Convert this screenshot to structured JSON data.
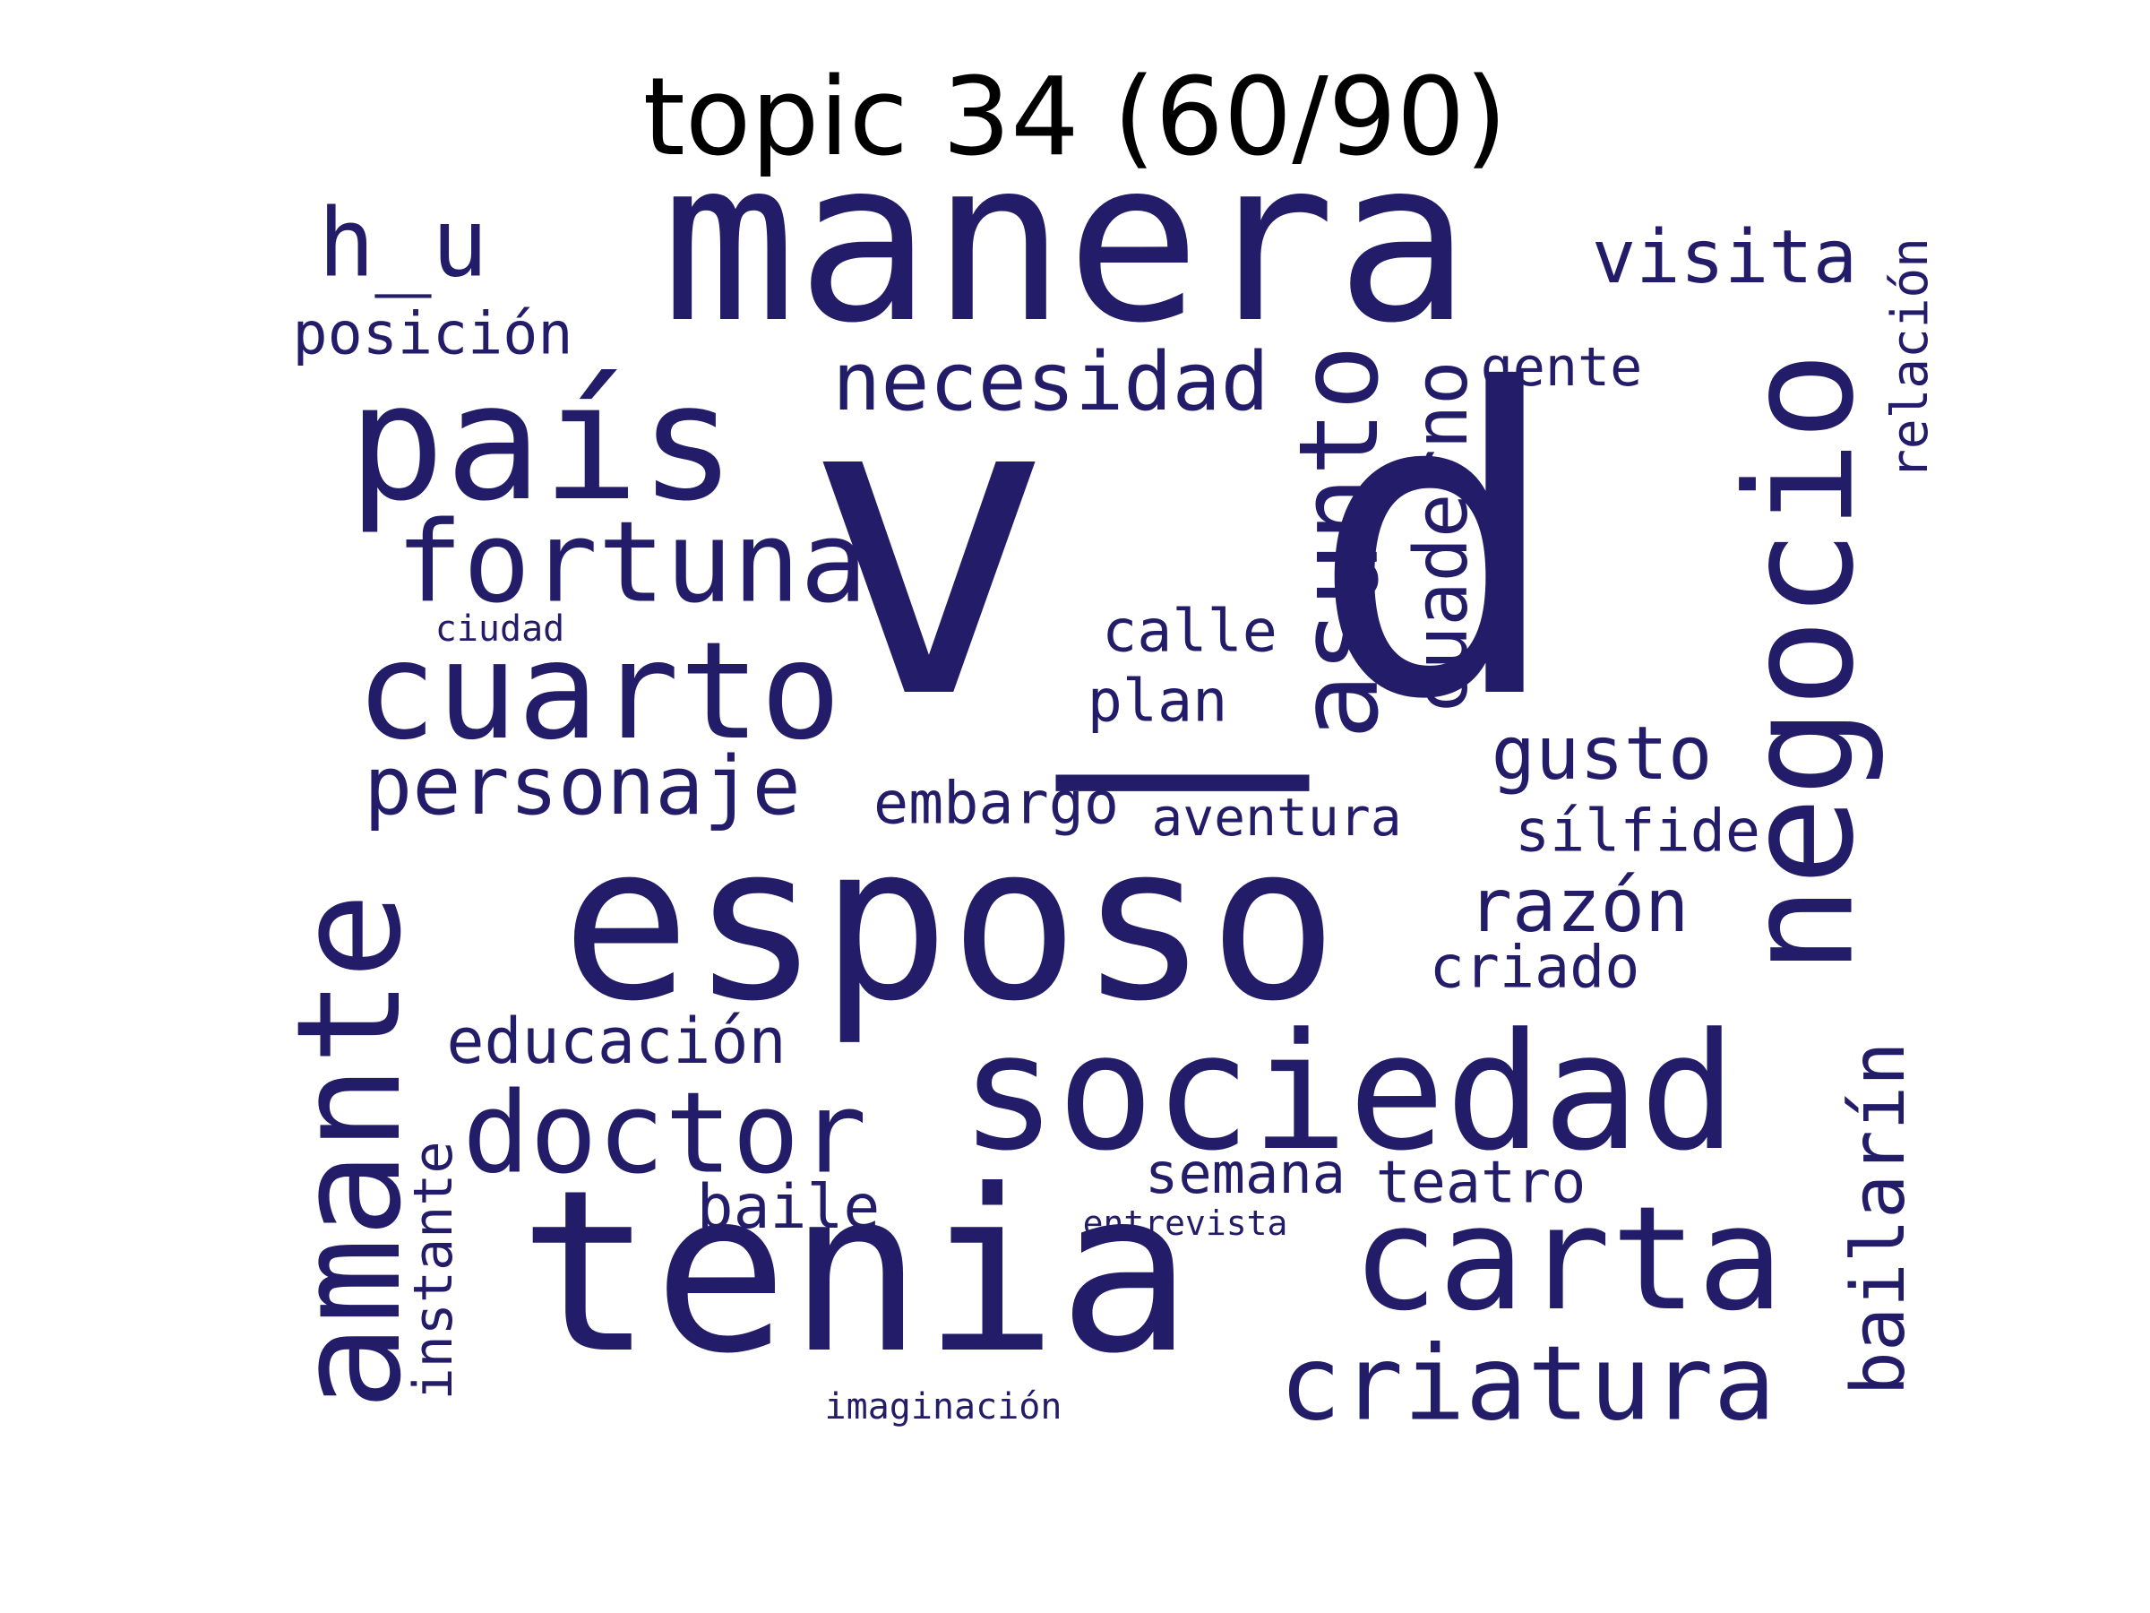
{
  "title": "topic 34 (60/90)",
  "word_color": "#231c69",
  "words": [
    {
      "text": "v_d",
      "weight": 1.0
    },
    {
      "text": "manera",
      "weight": 0.62
    },
    {
      "text": "esposo",
      "weight": 0.6
    },
    {
      "text": "tenia",
      "weight": 0.57
    },
    {
      "text": "país",
      "weight": 0.45
    },
    {
      "text": "sociedad",
      "weight": 0.45
    },
    {
      "text": "negocio",
      "weight": 0.43
    },
    {
      "text": "amante",
      "weight": 0.43
    },
    {
      "text": "carta",
      "weight": 0.42
    },
    {
      "text": "cuarto",
      "weight": 0.36
    },
    {
      "text": "doctor",
      "weight": 0.3
    },
    {
      "text": "fortuna",
      "weight": 0.3
    },
    {
      "text": "asunto",
      "weight": 0.3
    },
    {
      "text": "criatura",
      "weight": 0.29
    },
    {
      "text": "h_u",
      "weight": 0.25
    },
    {
      "text": "necesidad",
      "weight": 0.22
    },
    {
      "text": "personaje",
      "weight": 0.22
    },
    {
      "text": "cuaderno",
      "weight": 0.21
    },
    {
      "text": "gusto",
      "weight": 0.2
    },
    {
      "text": "razón",
      "weight": 0.2
    },
    {
      "text": "visita",
      "weight": 0.2
    },
    {
      "text": "bailarín",
      "weight": 0.2
    },
    {
      "text": "educación",
      "weight": 0.17
    },
    {
      "text": "embargo",
      "weight": 0.16
    },
    {
      "text": "sílfide",
      "weight": 0.16
    },
    {
      "text": "baile",
      "weight": 0.16
    },
    {
      "text": "posición",
      "weight": 0.16
    },
    {
      "text": "calle",
      "weight": 0.16
    },
    {
      "text": "criado",
      "weight": 0.16
    },
    {
      "text": "teatro",
      "weight": 0.16
    },
    {
      "text": "plan",
      "weight": 0.16
    },
    {
      "text": "semana",
      "weight": 0.15
    },
    {
      "text": "instante",
      "weight": 0.15
    },
    {
      "text": "gente",
      "weight": 0.15
    },
    {
      "text": "relación",
      "weight": 0.15
    },
    {
      "text": "aventura",
      "weight": 0.14
    },
    {
      "text": "ciudad",
      "weight": 0.1
    },
    {
      "text": "entrevista",
      "weight": 0.09
    },
    {
      "text": "imaginación",
      "weight": 0.09
    }
  ]
}
